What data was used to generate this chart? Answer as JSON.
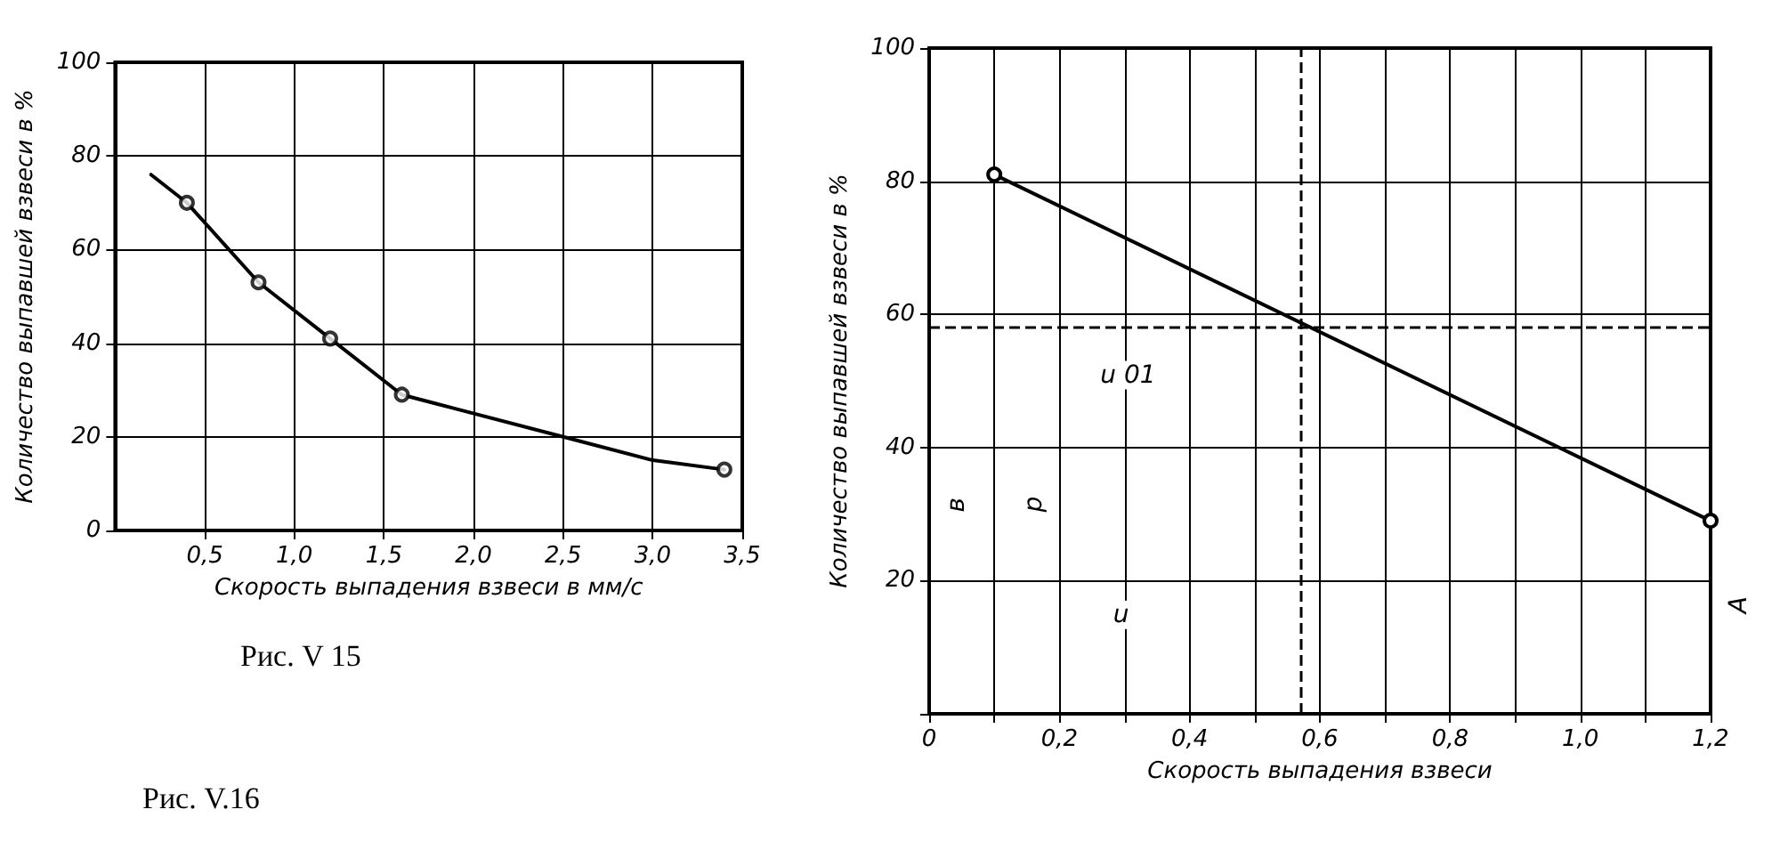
{
  "chart_data": [
    {
      "type": "line",
      "xlabel": "Скорость выпадения взвеси в мм/с",
      "ylabel": "Количество выпавшей взвеси в %",
      "xlim": [
        0,
        3.5
      ],
      "ylim": [
        0,
        100
      ],
      "xticks": [
        {
          "value": 0.5,
          "label": "0,5"
        },
        {
          "value": 1,
          "label": "1,0"
        },
        {
          "value": 1.5,
          "label": "1,5"
        },
        {
          "value": 2,
          "label": "2,0"
        },
        {
          "value": 2.5,
          "label": "2,5"
        },
        {
          "value": 3,
          "label": "3,0"
        },
        {
          "value": 3.5,
          "label": "3,5"
        }
      ],
      "yticks": [
        0,
        20,
        40,
        60,
        80,
        100
      ],
      "grid": true,
      "series": [
        {
          "color": "#000000",
          "marker": "none",
          "x": [
            0.2,
            0.4,
            0.8,
            1.2,
            1.6,
            1.8,
            2.5,
            3.0,
            3.4
          ],
          "values": [
            76,
            70,
            53,
            41,
            29,
            27,
            20,
            15,
            13
          ]
        },
        {
          "type": "scatter",
          "color": "#000000",
          "marker": "circle",
          "x": [
            0.4,
            0.8,
            1.2,
            1.6,
            3.4
          ],
          "values": [
            70,
            53,
            41,
            29,
            13
          ]
        }
      ],
      "annotations": [
        "Рис. V 15",
        "Рис. V.16"
      ]
    },
    {
      "type": "line",
      "xlabel": "Скорость выпадения взвеси",
      "ylabel": "Количество выпавшей взвеси в %",
      "xlim": [
        0,
        1.2
      ],
      "ylim": [
        0,
        100
      ],
      "xticks": [
        0,
        {
          "value": 0.1,
          "label": null
        },
        {
          "value": 0.2,
          "label": "0,2"
        },
        {
          "value": 0.3,
          "label": null
        },
        {
          "value": 0.4,
          "label": "0,4"
        },
        {
          "value": 0.5,
          "label": null
        },
        {
          "value": 0.6,
          "label": "0,6"
        },
        {
          "value": 0.7,
          "label": null
        },
        {
          "value": 0.8,
          "label": "0,8"
        },
        {
          "value": 0.9,
          "label": null
        },
        {
          "value": 1,
          "label": "1,0"
        },
        {
          "value": 1.1,
          "label": null
        },
        {
          "value": 1.2,
          "label": "1,2"
        }
      ],
      "yticks": [
        {
          "value": 0,
          "label": null
        },
        20,
        40,
        60,
        80,
        100
      ],
      "grid": true,
      "series": [
        {
          "color": "#000000",
          "marker": "circle",
          "x": [
            0.1,
            1.2
          ],
          "values": [
            81,
            29
          ]
        }
      ],
      "ref_lines": [
        {
          "axis": "x",
          "value": 0.57,
          "line_style": "dashed"
        },
        {
          "axis": "y",
          "value": 58,
          "line_style": "dashed"
        }
      ],
      "annotations": [
        "u 01",
        "u",
        "p",
        "в",
        "A"
      ]
    }
  ]
}
